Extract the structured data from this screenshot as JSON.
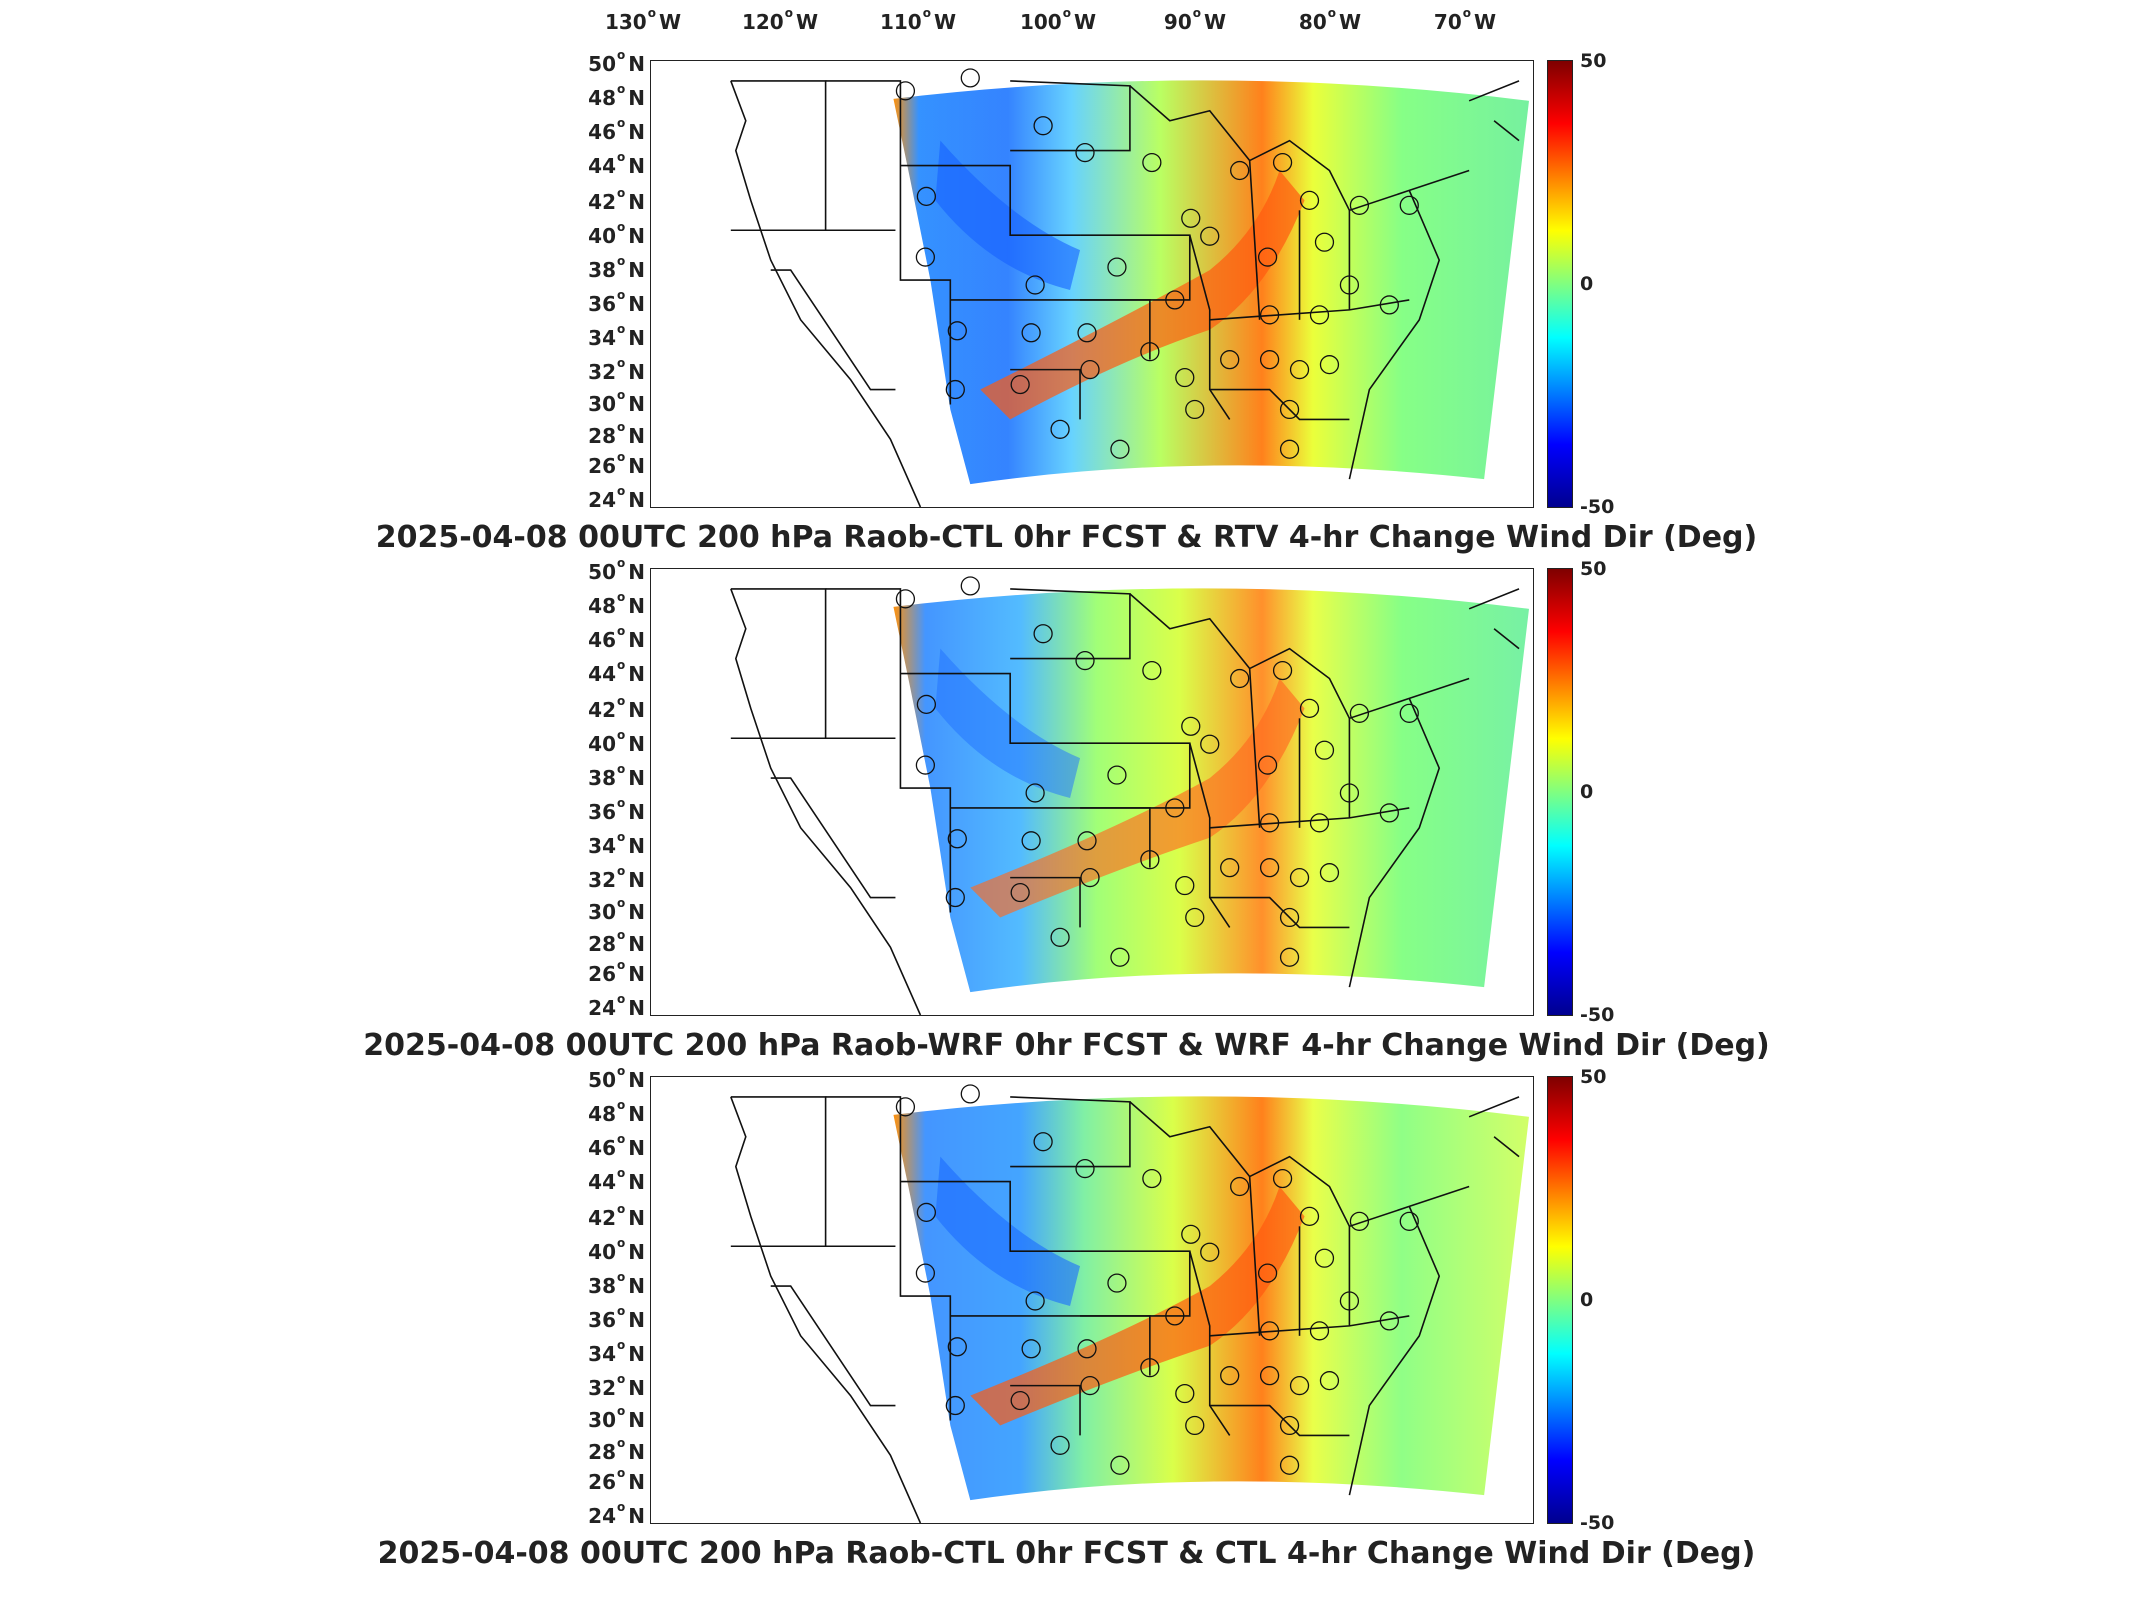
{
  "longitude_labels": [
    {
      "value": "130",
      "hemi": "W"
    },
    {
      "value": "120",
      "hemi": "W"
    },
    {
      "value": "110",
      "hemi": "W"
    },
    {
      "value": "100",
      "hemi": "W"
    },
    {
      "value": "90",
      "hemi": "W"
    },
    {
      "value": "80",
      "hemi": "W"
    },
    {
      "value": "70",
      "hemi": "W"
    }
  ],
  "latitude_labels": [
    "50",
    "48",
    "46",
    "44",
    "42",
    "40",
    "38",
    "36",
    "34",
    "32",
    "30",
    "28",
    "26",
    "24"
  ],
  "latitude_hemi": "N",
  "colorbar": {
    "max": "50",
    "mid": "0",
    "min": "-50"
  },
  "colors": {
    "max": "#7f0000",
    "high": "#ff0000",
    "mid": "#80ff80",
    "low": "#0000ff",
    "min": "#00008f"
  },
  "panels": [
    {
      "title": "2025-04-08 00UTC 200 hPa Raob-CTL 0hr FCST & RTV 4-hr Change Wind Dir (Deg)"
    },
    {
      "title": "2025-04-08 00UTC 200 hPa Raob-WRF 0hr FCST & WRF 4-hr Change Wind Dir (Deg)"
    },
    {
      "title": "2025-04-08 00UTC 200 hPa Raob-CTL 0hr FCST & CTL 4-hr Change Wind Dir (Deg)"
    }
  ]
}
